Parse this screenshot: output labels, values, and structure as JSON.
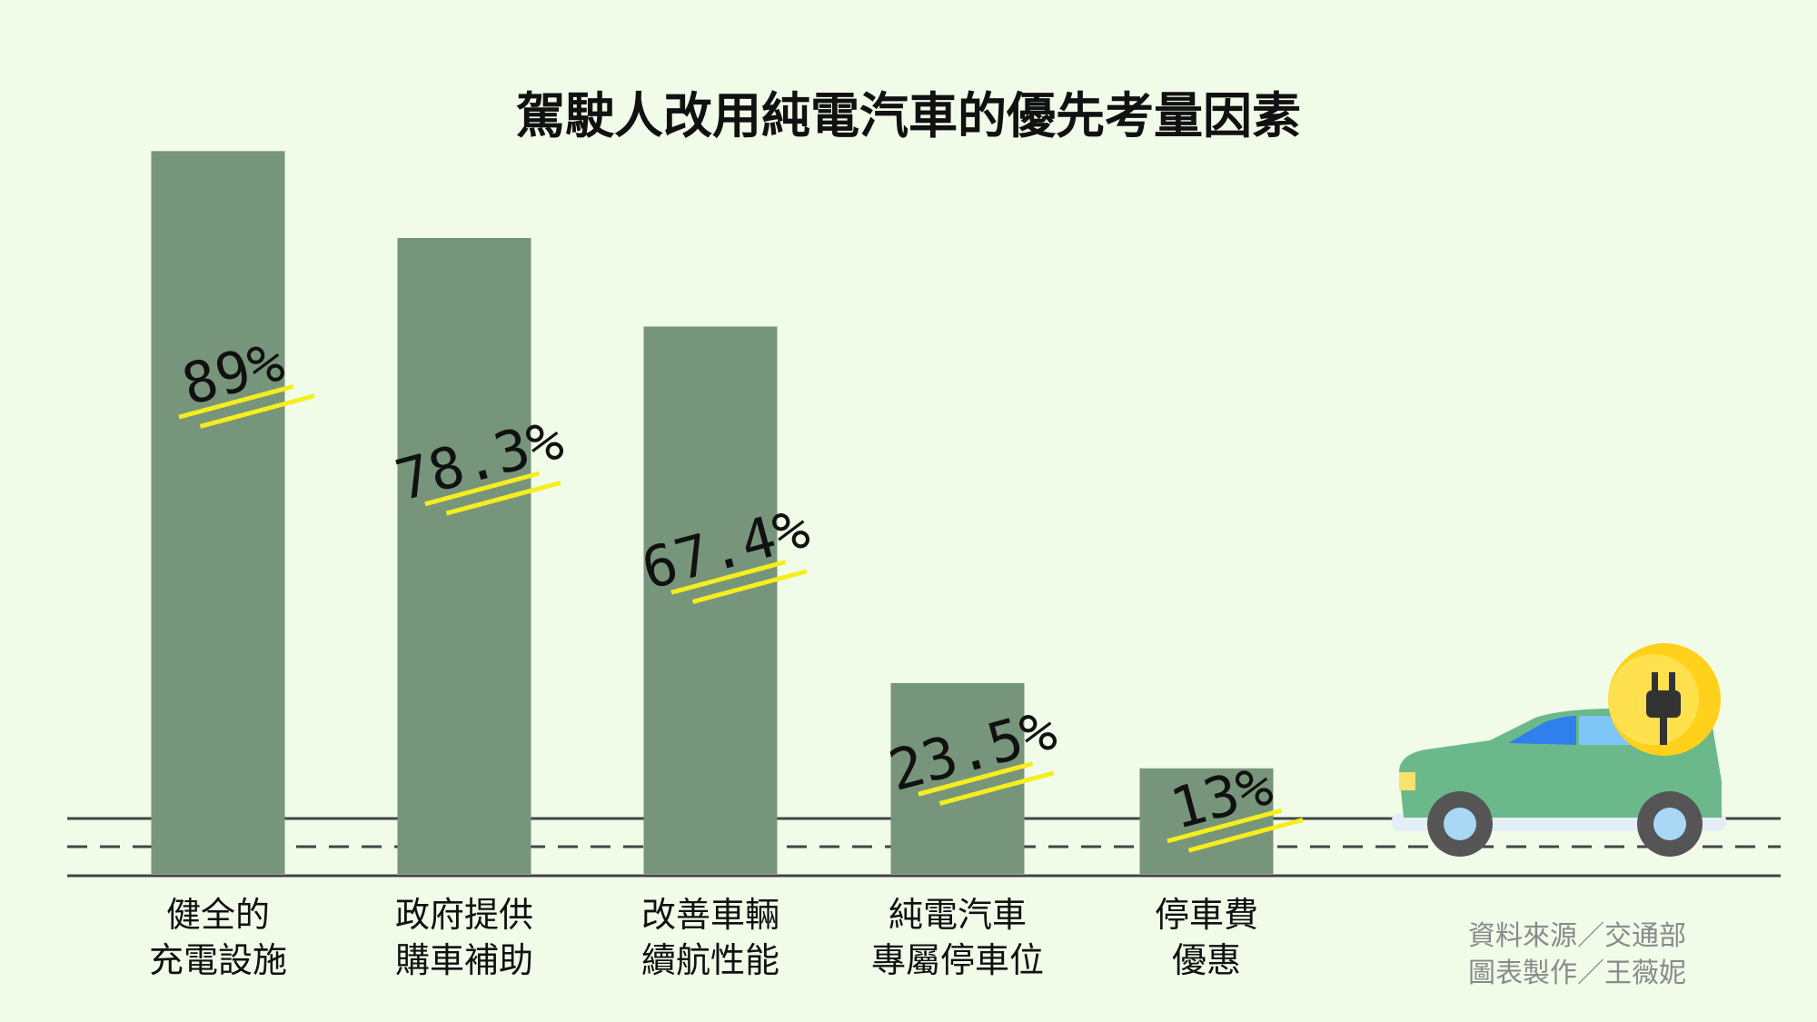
{
  "chart_data": {
    "type": "bar",
    "title": "駕駛人改用純電汽車的優先考量因素",
    "categories": [
      "健全的\n充電設施",
      "政府提供\n購車補助",
      "改善車輛\n續航性能",
      "純電汽車\n專屬停車位",
      "停車費\n優惠"
    ],
    "values": [
      89,
      78.3,
      67.4,
      23.5,
      13
    ],
    "value_labels": [
      "89%",
      "78.3%",
      "67.4%",
      "23.5%",
      "13%"
    ],
    "color": "#77957a",
    "ylim": [
      0,
      100
    ],
    "source": "資料來源／交通部",
    "credit": "圖表製作／王薇妮"
  }
}
